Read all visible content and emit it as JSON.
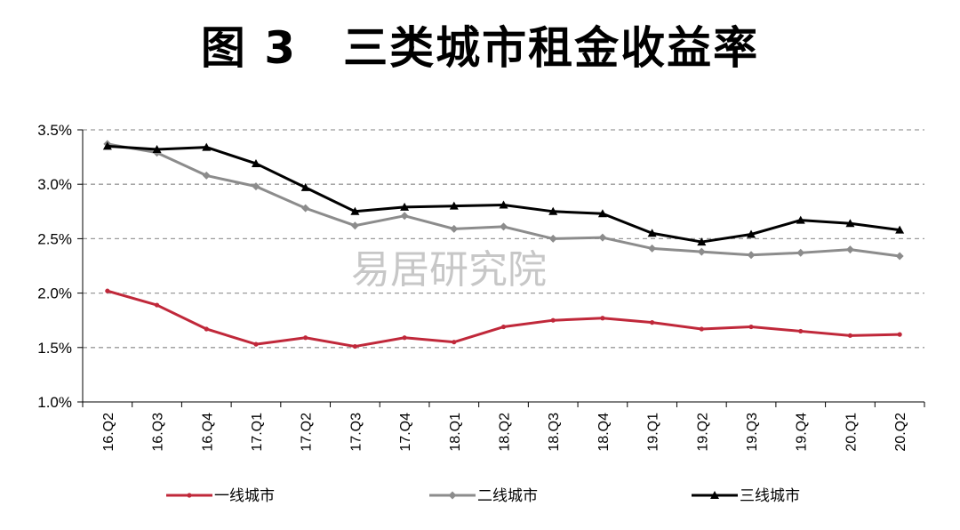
{
  "title": "图 3　三类城市租金收益率",
  "watermark": "易居研究院",
  "chart_data": {
    "type": "line",
    "categories": [
      "16.Q2",
      "16.Q3",
      "16.Q4",
      "17.Q1",
      "17.Q2",
      "17.Q3",
      "17.Q4",
      "18.Q1",
      "18.Q2",
      "18.Q3",
      "18.Q4",
      "19.Q1",
      "19.Q2",
      "19.Q3",
      "19.Q4",
      "20.Q1",
      "20.Q2"
    ],
    "ylim": [
      1.0,
      3.5
    ],
    "yticks": [
      1.0,
      1.5,
      2.0,
      2.5,
      3.0,
      3.5
    ],
    "ytick_labels": [
      "1.0%",
      "1.5%",
      "2.0%",
      "2.5%",
      "3.0%",
      "3.5%"
    ],
    "grid": "horizontal-dashed",
    "legend_position": "bottom",
    "series": [
      {
        "name": "一线城市",
        "color": "#c0283a",
        "marker": "dot",
        "values": [
          2.02,
          1.89,
          1.67,
          1.53,
          1.59,
          1.51,
          1.59,
          1.55,
          1.69,
          1.75,
          1.77,
          1.73,
          1.67,
          1.69,
          1.65,
          1.61,
          1.62
        ]
      },
      {
        "name": "二线城市",
        "color": "#8c8c8c",
        "marker": "diamond",
        "values": [
          3.37,
          3.29,
          3.08,
          2.98,
          2.78,
          2.62,
          2.71,
          2.59,
          2.61,
          2.5,
          2.51,
          2.41,
          2.38,
          2.35,
          2.37,
          2.4,
          2.34
        ]
      },
      {
        "name": "三线城市",
        "color": "#000000",
        "marker": "triangle",
        "values": [
          3.35,
          3.32,
          3.34,
          3.19,
          2.97,
          2.75,
          2.79,
          2.8,
          2.81,
          2.75,
          2.73,
          2.55,
          2.47,
          2.54,
          2.67,
          2.64,
          2.58
        ]
      }
    ]
  }
}
